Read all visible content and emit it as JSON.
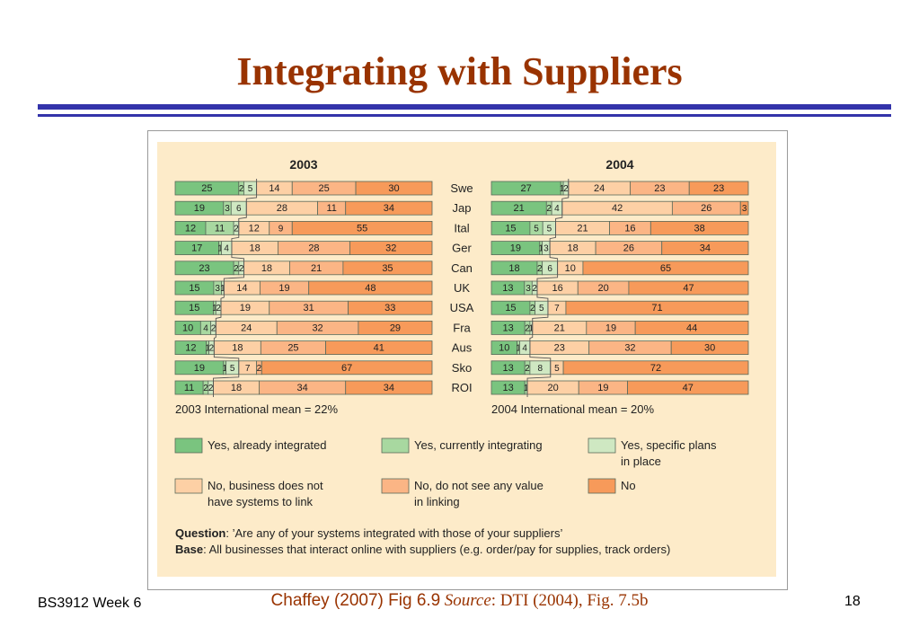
{
  "slide": {
    "title": "Integrating with Suppliers",
    "footer_left": "BS3912 Week 6",
    "footer_page": "18",
    "caption": "Chaffey (2007) Fig 6.9",
    "source_label": "Source",
    "source_text": ": DTI (2004), Fig. 7.5b"
  },
  "chart_data": {
    "type": "bar",
    "orientation": "horizontal",
    "stacked": true,
    "normalized_percent": true,
    "categories": [
      "Swe",
      "Jap",
      "Ital",
      "Ger",
      "Can",
      "UK",
      "USA",
      "Fra",
      "Aus",
      "Sko",
      "ROI"
    ],
    "series_names": [
      "Yes, already integrated",
      "Yes, currently integrating",
      "Yes, specific plans in place",
      "No, business does not have systems to link",
      "No, do not see any value in linking",
      "No"
    ],
    "colors": [
      "#7ac47f",
      "#a8d8a0",
      "#cfe8c2",
      "#fdd0a5",
      "#fbb585",
      "#f79a5a"
    ],
    "bar_border": "#5a6a5a",
    "panels": [
      {
        "title": "2003",
        "mean_text": "2003 International mean = 22%",
        "values": [
          [
            25,
            2,
            5,
            14,
            25,
            30
          ],
          [
            19,
            3,
            6,
            28,
            11,
            34
          ],
          [
            12,
            11,
            2,
            12,
            9,
            55
          ],
          [
            17,
            1,
            4,
            18,
            28,
            32
          ],
          [
            23,
            2,
            2,
            18,
            21,
            35
          ],
          [
            15,
            3,
            1,
            14,
            19,
            48
          ],
          [
            15,
            1,
            2,
            19,
            31,
            33
          ],
          [
            10,
            4,
            2,
            24,
            32,
            29
          ],
          [
            12,
            1,
            2,
            18,
            25,
            41
          ],
          [
            19,
            1,
            5,
            7,
            2,
            67
          ],
          [
            11,
            2,
            2,
            18,
            34,
            34
          ]
        ]
      },
      {
        "title": "2004",
        "mean_text": "2004 International mean = 20%",
        "values": [
          [
            27,
            1,
            2,
            24,
            23,
            23
          ],
          [
            21,
            2,
            4,
            42,
            26,
            3
          ],
          [
            15,
            5,
            5,
            21,
            16,
            38
          ],
          [
            19,
            1,
            3,
            18,
            26,
            34
          ],
          [
            18,
            2,
            6,
            10,
            0,
            65
          ],
          [
            13,
            3,
            2,
            16,
            20,
            47
          ],
          [
            15,
            2,
            5,
            7,
            0,
            71
          ],
          [
            13,
            2,
            1,
            21,
            19,
            44
          ],
          [
            10,
            1,
            4,
            23,
            32,
            30
          ],
          [
            13,
            2,
            8,
            5,
            0,
            72
          ],
          [
            13,
            1,
            0,
            20,
            19,
            47
          ]
        ]
      }
    ],
    "legend": [
      [
        "Yes, already integrated"
      ],
      [
        "Yes, currently integrating"
      ],
      [
        "Yes, specific plans",
        "in place"
      ],
      [
        "No, business does not",
        "have systems to link"
      ],
      [
        "No, do not see any value",
        "in linking"
      ],
      [
        "No"
      ]
    ],
    "question_label": "Question",
    "question_text": ": ’Are any of your systems integrated with those of your suppliers’",
    "base_label": "Base",
    "base_text": ": All businesses that interact online with suppliers (e.g. order/pay for supplies, track orders)"
  }
}
